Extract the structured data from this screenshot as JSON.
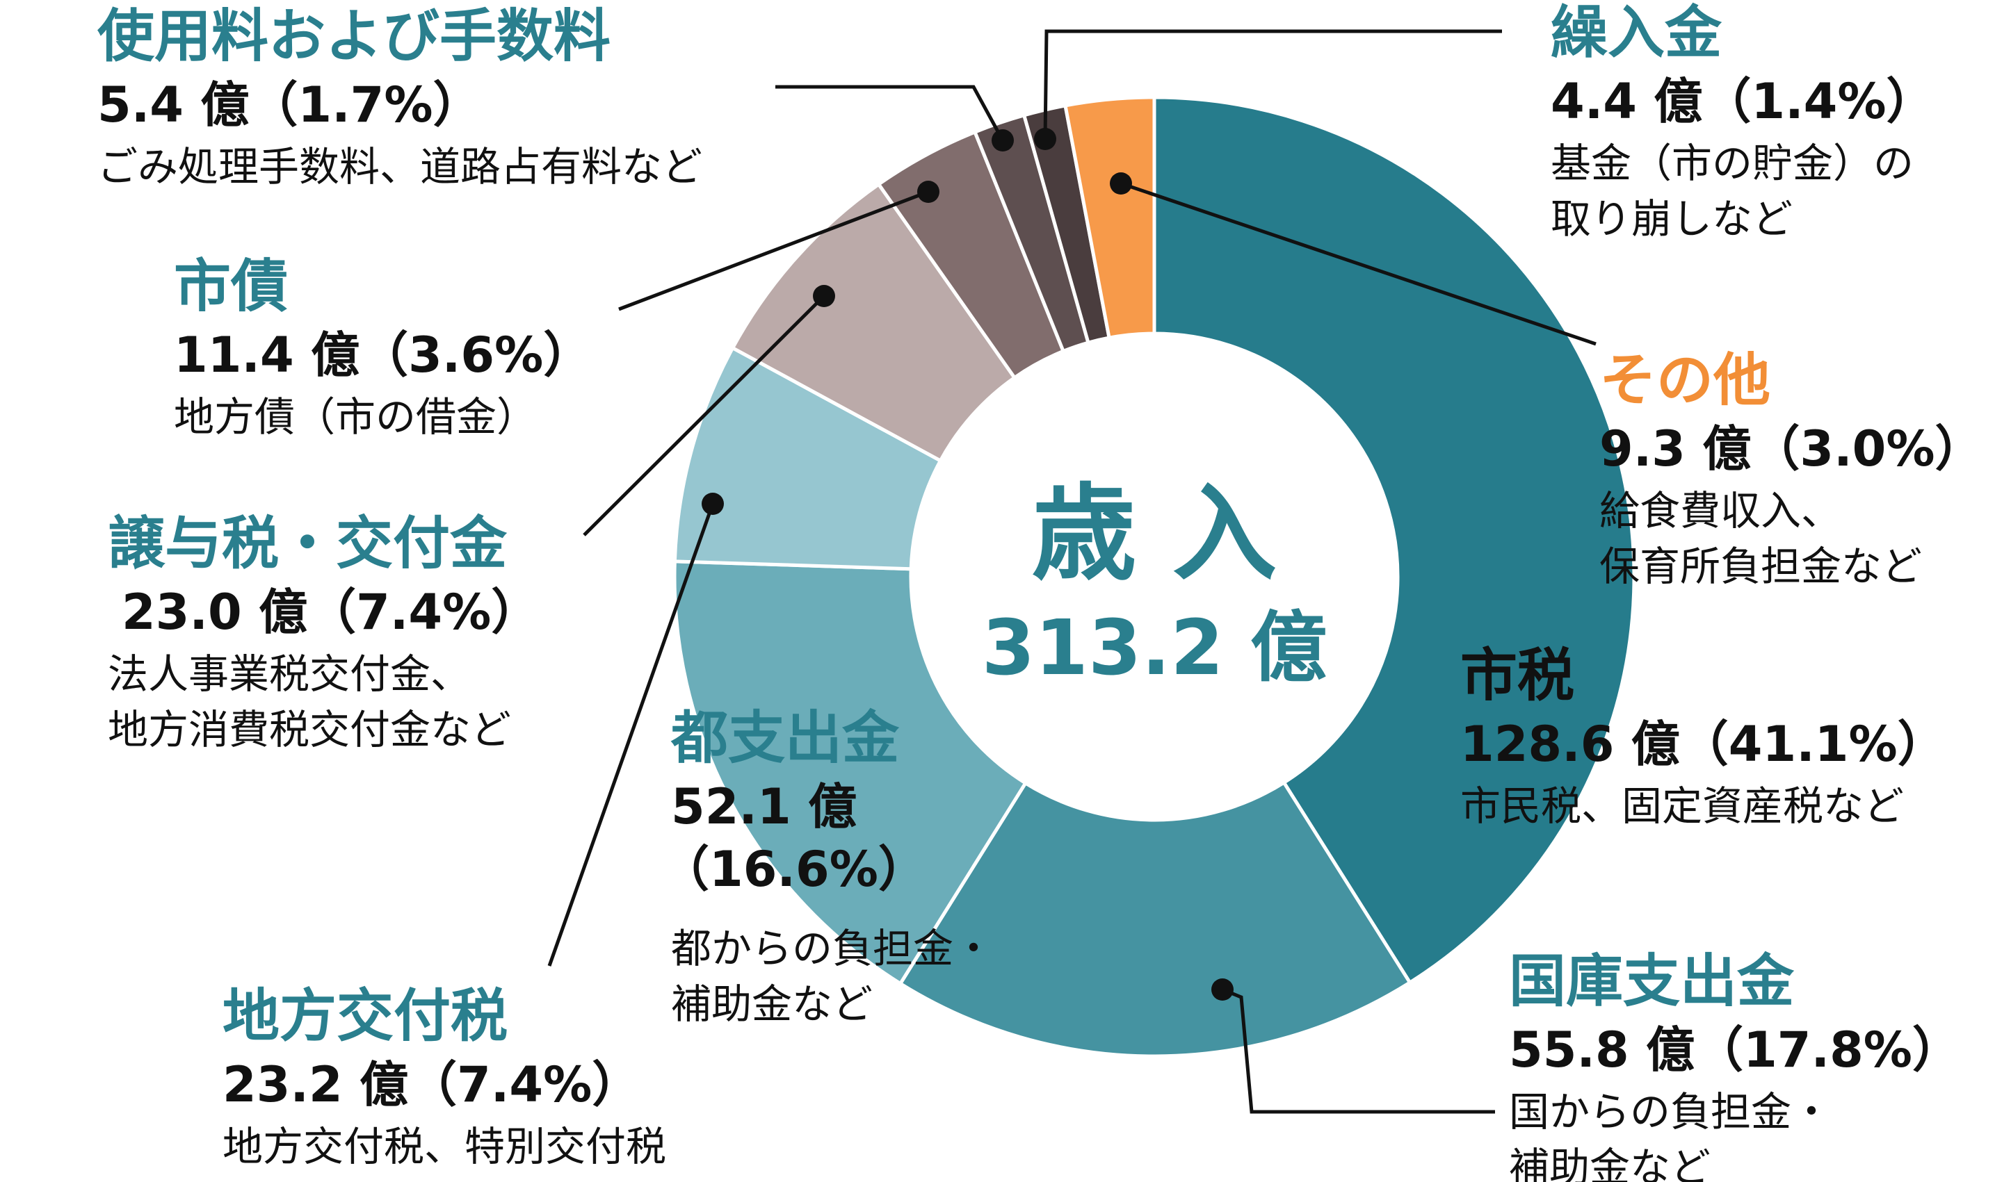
{
  "chart_data": {
    "type": "pie",
    "title": "歳 入",
    "total_label": "313.2 億",
    "slices": [
      {
        "name": "市税",
        "value": 128.6,
        "value_label": "128.6 億（41.1%）",
        "desc": [
          "市民税、固定資産税など"
        ],
        "color": "#267C8C",
        "name_color": "#111111"
      },
      {
        "name": "国庫支出金",
        "value": 55.8,
        "value_label": "55.8 億（17.8%）",
        "desc": [
          "国からの負担金・",
          "補助金など"
        ],
        "color": "#4593A1",
        "name_color": "#2A7F8E"
      },
      {
        "name": "都支出金",
        "value": 52.1,
        "value_label": "52.1 億",
        "value_label_2": "（16.6%）",
        "desc": [
          "都からの負担金・",
          "補助金など"
        ],
        "color": "#6BADB9",
        "name_color": "#2A7F8E"
      },
      {
        "name": "地方交付税",
        "value": 23.2,
        "value_label": "23.2 億（7.4%）",
        "desc": [
          "地方交付税、特別交付税"
        ],
        "color": "#96C6D0",
        "name_color": "#2A7F8E"
      },
      {
        "name": "譲与税・交付金",
        "value": 23.0,
        "value_label": "23.0 億（7.4%）",
        "desc": [
          "法人事業税交付金、",
          "地方消費税交付金など"
        ],
        "color": "#BBAAA9",
        "name_color": "#2A7F8E"
      },
      {
        "name": "市債",
        "value": 11.4,
        "value_label": "11.4 億（3.6%）",
        "desc": [
          "地方債（市の借金）"
        ],
        "color": "#816D6D",
        "name_color": "#2A7F8E"
      },
      {
        "name": "使用料および手数料",
        "value": 5.4,
        "value_label": "5.4 億（1.7%）",
        "desc": [
          "ごみ処理手数料、道路占有料など"
        ],
        "color": "#5E4F50",
        "name_color": "#2A7F8E"
      },
      {
        "name": "繰入金",
        "value": 4.4,
        "value_label": "4.4 億（1.4%）",
        "desc": [
          "基金（市の貯金）の",
          "取り崩しなど"
        ],
        "color": "#4A3D3E",
        "name_color": "#2A7F8E"
      },
      {
        "name": "その他",
        "value": 9.3,
        "value_label": "9.3 億（3.0%）",
        "desc": [
          "給食費収入、",
          "保育所負担金など"
        ],
        "color": "#F79A4A",
        "name_color": "#F28E36"
      }
    ],
    "colors": {
      "center_text": "#2A7F8E",
      "label_text": "#111111"
    },
    "legend": "none"
  }
}
